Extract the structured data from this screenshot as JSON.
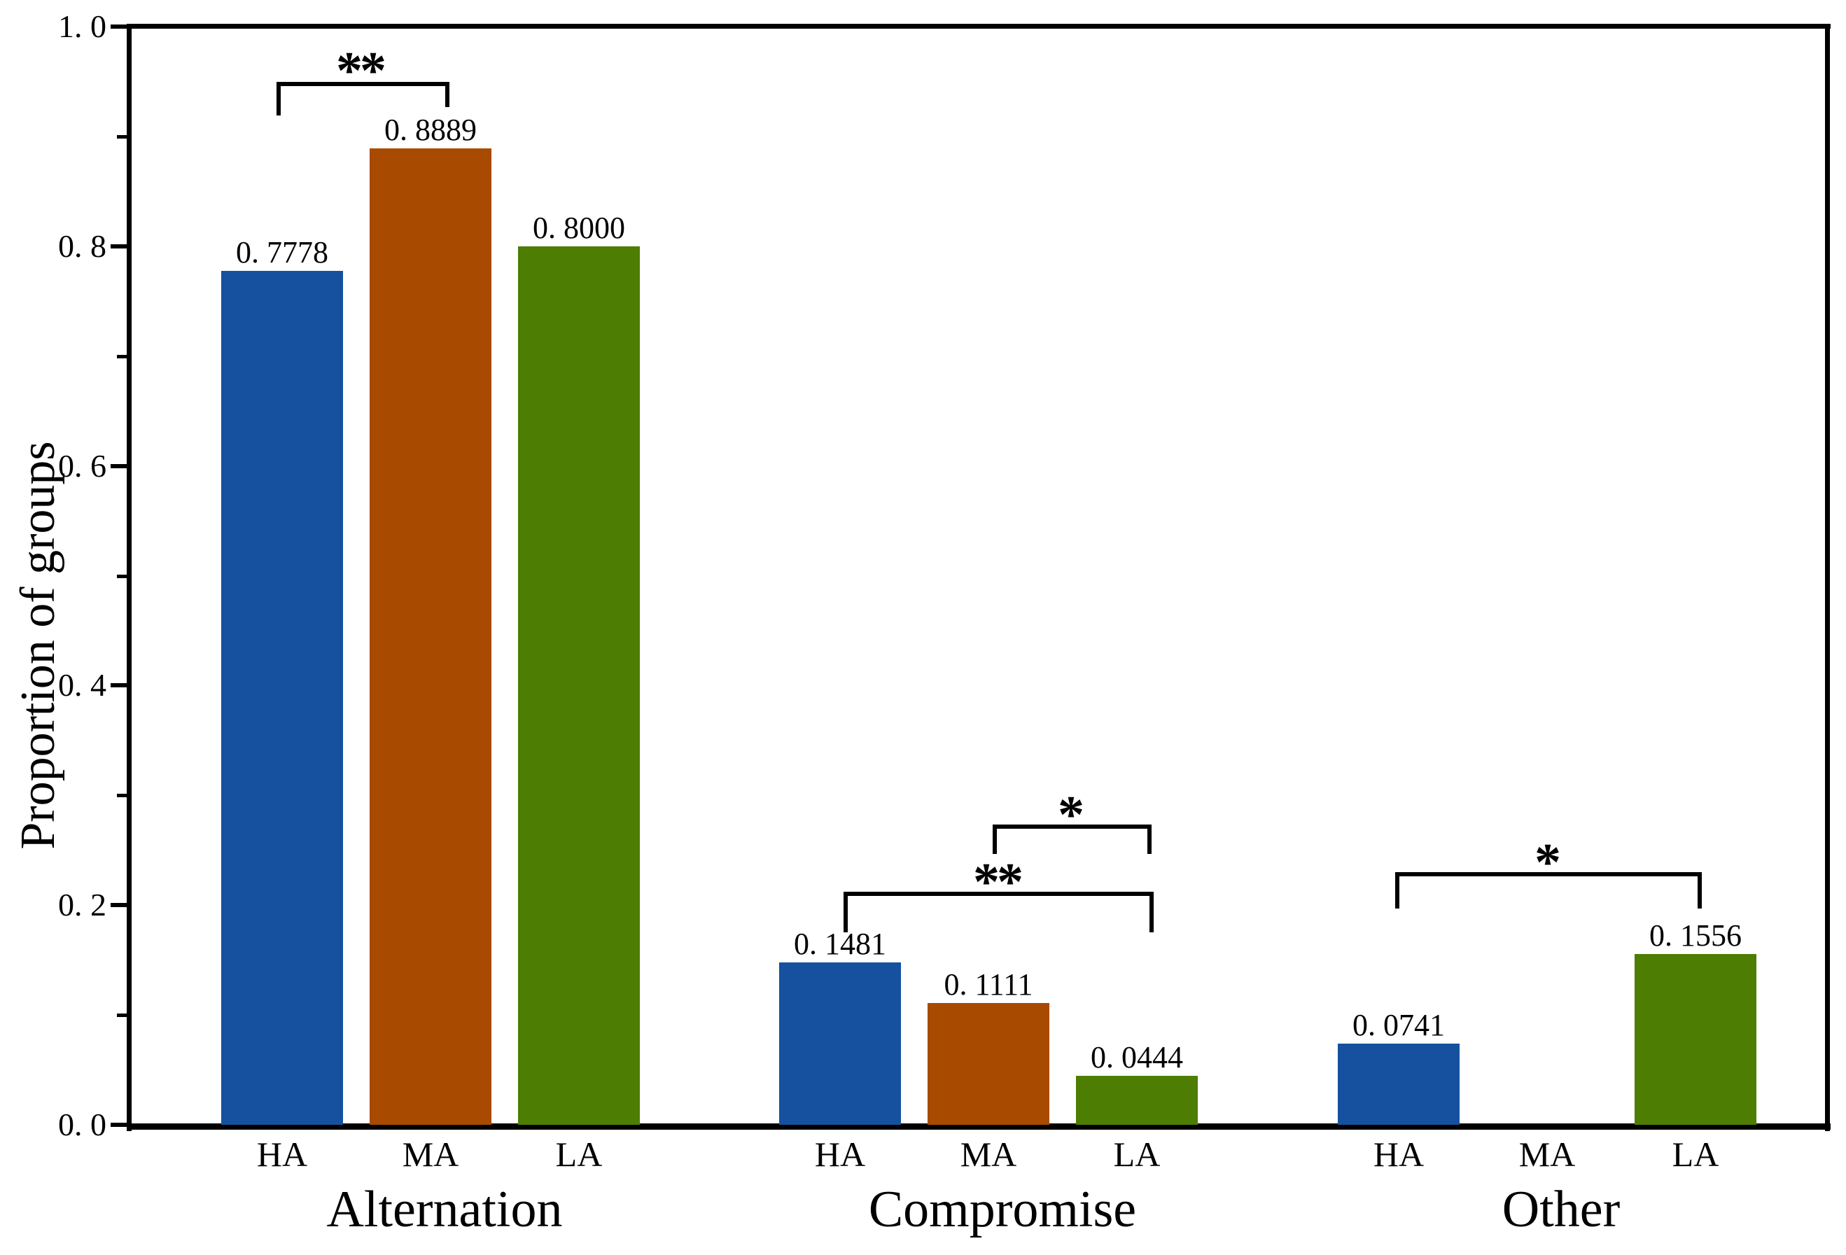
{
  "chart_data": {
    "type": "bar",
    "title": "",
    "xlabel": "",
    "ylabel": "Proportion of groups",
    "ylim": [
      0.0,
      1.0
    ],
    "grid": false,
    "legend": "none",
    "ytick_values": [
      0.0,
      0.2,
      0.4,
      0.6,
      0.8,
      1.0
    ],
    "ytick_labels": [
      "0. 0",
      "0. 2",
      "0. 4",
      "0. 6",
      "0. 8",
      "1. 0"
    ],
    "minor_tick_values": [
      0.1,
      0.3,
      0.5,
      0.7,
      0.9
    ],
    "bar_categories": [
      "HA",
      "MA",
      "LA"
    ],
    "colors": {
      "HA": "#15519E",
      "MA": "#A84A00",
      "LA": "#4D7D02"
    },
    "axis_color": "#000000",
    "groups": [
      {
        "label": "Alternation",
        "bars": [
          {
            "category": "HA",
            "value": 0.7778,
            "label": "0. 7778"
          },
          {
            "category": "MA",
            "value": 0.8889,
            "label": "0. 8889"
          },
          {
            "category": "LA",
            "value": 0.8,
            "label": "0. 8000"
          }
        ],
        "significance": [
          {
            "from": "HA",
            "to": "MA",
            "stars": "**"
          }
        ]
      },
      {
        "label": "Compromise",
        "bars": [
          {
            "category": "HA",
            "value": 0.1481,
            "label": "0. 1481"
          },
          {
            "category": "MA",
            "value": 0.1111,
            "label": "0. 1111"
          },
          {
            "category": "LA",
            "value": 0.0444,
            "label": "0. 0444"
          }
        ],
        "significance": [
          {
            "from": "MA",
            "to": "LA",
            "stars": "*"
          },
          {
            "from": "HA",
            "to": "LA",
            "stars": "**"
          }
        ]
      },
      {
        "label": "Other",
        "bars": [
          {
            "category": "HA",
            "value": 0.0741,
            "label": "0. 0741"
          },
          {
            "category": "MA",
            "value": 0.0,
            "label": ""
          },
          {
            "category": "LA",
            "value": 0.1556,
            "label": "0. 1556"
          }
        ],
        "significance": [
          {
            "from": "HA",
            "to": "LA",
            "stars": "*"
          }
        ]
      }
    ]
  }
}
